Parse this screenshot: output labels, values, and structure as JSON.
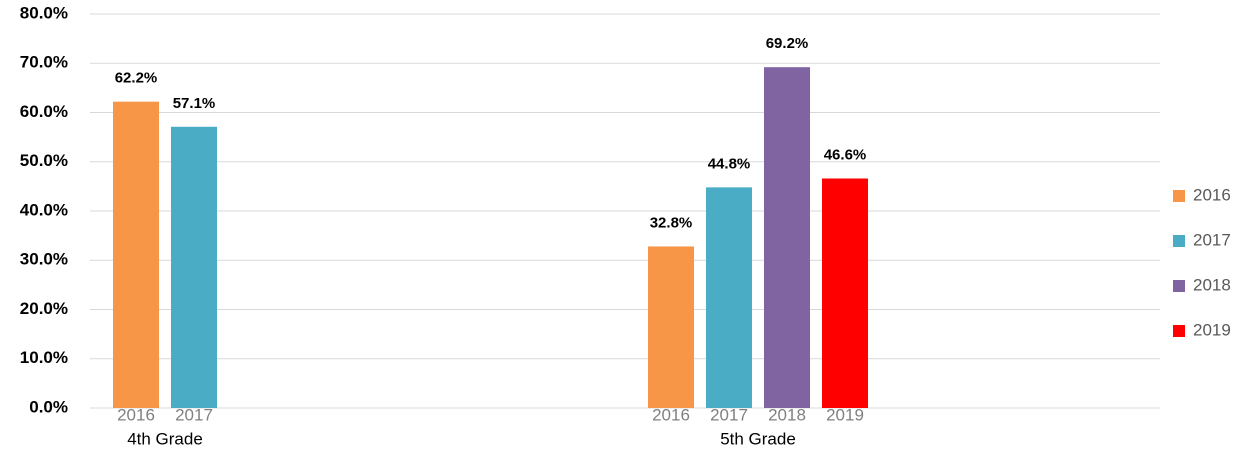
{
  "chart_data": {
    "type": "bar",
    "categories": [
      "4th Grade",
      "5th Grade"
    ],
    "series": [
      {
        "name": "2016",
        "color": "#F79646",
        "values": [
          62.2,
          32.8
        ],
        "value_labels": [
          "62.2%",
          "32.8%"
        ]
      },
      {
        "name": "2017",
        "color": "#4BACC6",
        "values": [
          57.1,
          44.8
        ],
        "value_labels": [
          "57.1%",
          "44.8%"
        ]
      },
      {
        "name": "2018",
        "color": "#8064A2",
        "values": [
          null,
          69.2
        ],
        "value_labels": [
          null,
          "69.2%"
        ]
      },
      {
        "name": "2019",
        "color": "#FF0000",
        "values": [
          null,
          46.6
        ],
        "value_labels": [
          null,
          "46.6%"
        ]
      }
    ],
    "ylim": [
      0,
      80
    ],
    "yticks": [
      {
        "value": 0,
        "label": "0.0%"
      },
      {
        "value": 10,
        "label": "10.0%"
      },
      {
        "value": 20,
        "label": "20.0%"
      },
      {
        "value": 30,
        "label": "30.0%"
      },
      {
        "value": 40,
        "label": "40.0%"
      },
      {
        "value": 50,
        "label": "50.0%"
      },
      {
        "value": 60,
        "label": "60.0%"
      },
      {
        "value": 70,
        "label": "70.0%"
      },
      {
        "value": 80,
        "label": "80.0%"
      }
    ],
    "grid": true,
    "legend": "right"
  }
}
